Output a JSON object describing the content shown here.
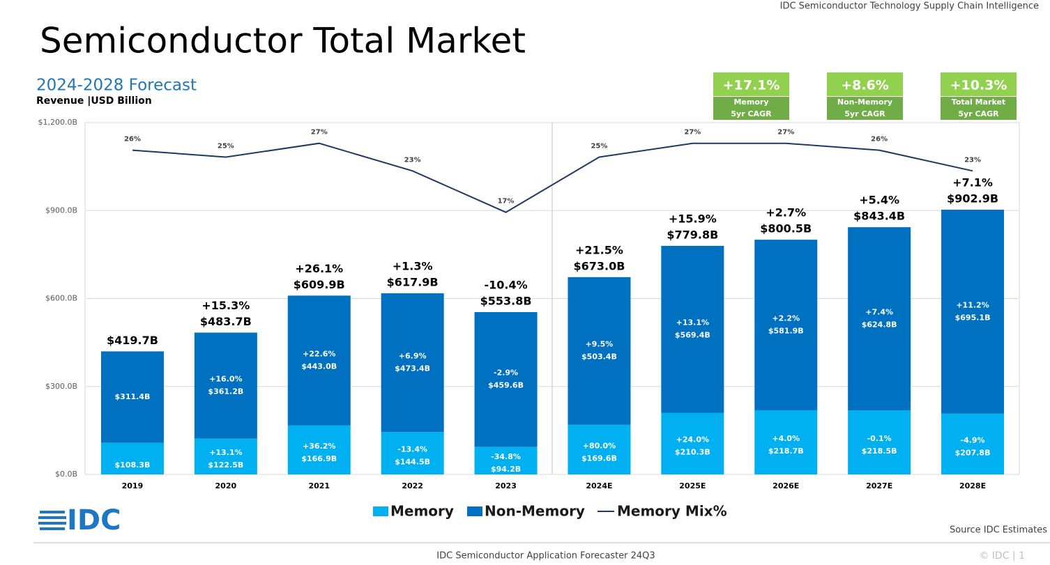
{
  "header": "IDC Semiconductor Technology Supply Chain Intelligence",
  "title": "Semiconductor Total Market",
  "logo": "IDC",
  "source": "Source IDC Estimates",
  "footer": "IDC Semiconductor Application Forecaster 24Q3",
  "copyright": "© IDC |  1",
  "kpis": [
    {
      "value": "+17.1%",
      "name": "Memory",
      "sub": "5yr CAGR"
    },
    {
      "value": "+8.6%",
      "name": "Non-Memory",
      "sub": "5yr CAGR"
    },
    {
      "value": "+10.3%",
      "name": "Total Market",
      "sub": "5yr CAGR"
    }
  ],
  "chart_data": {
    "type": "bar",
    "subtitle": "2024-2028 Forecast",
    "ylabel": "Revenue |USD Billion",
    "categories": [
      "2019",
      "2020",
      "2021",
      "2022",
      "2023",
      "2024E",
      "2025E",
      "2026E",
      "2027E",
      "2028E"
    ],
    "ylim": [
      0,
      1200
    ],
    "yticks": [
      {
        "value": 0,
        "label": "$0.0B"
      },
      {
        "value": 300,
        "label": "$300.0B"
      },
      {
        "value": 600,
        "label": "$600.0B"
      },
      {
        "value": 900,
        "label": "$900.0B"
      },
      {
        "value": 1200,
        "label": "$1,200.0B"
      }
    ],
    "y2lim": [
      -21,
      30
    ],
    "grid": true,
    "series": [
      {
        "name": "Memory",
        "color": "#00b0f0",
        "values": [
          108.3,
          122.5,
          166.9,
          144.5,
          94.2,
          169.6,
          210.3,
          218.7,
          218.5,
          207.8
        ],
        "value_labels": [
          "$108.3B",
          "$122.5B",
          "$166.9B",
          "$144.5B",
          "$94.2B",
          "$169.6B",
          "$210.3B",
          "$218.7B",
          "$218.5B",
          "$207.8B"
        ],
        "growth_labels": [
          null,
          "+13.1%",
          "+36.2%",
          "-13.4%",
          "-34.8%",
          "+80.0%",
          "+24.0%",
          "+4.0%",
          "-0.1%",
          "-4.9%"
        ]
      },
      {
        "name": "Non-Memory",
        "color": "#0070c0",
        "values": [
          311.4,
          361.2,
          443.0,
          473.4,
          459.6,
          503.4,
          569.4,
          581.9,
          624.8,
          695.1
        ],
        "value_labels": [
          "$311.4B",
          "$361.2B",
          "$443.0B",
          "$473.4B",
          "$459.6B",
          "$503.4B",
          "$569.4B",
          "$581.9B",
          "$624.8B",
          "$695.1B"
        ],
        "growth_labels": [
          null,
          "+16.0%",
          "+22.6%",
          "+6.9%",
          "-2.9%",
          "+9.5%",
          "+13.1%",
          "+2.2%",
          "+7.4%",
          "+11.2%"
        ]
      },
      {
        "name": "Memory Mix%",
        "color": "#1f3864",
        "type": "line",
        "axis": "y2",
        "values": [
          26,
          25,
          27,
          23,
          17,
          25,
          27,
          27,
          26,
          23
        ],
        "value_labels": [
          "26%",
          "25%",
          "27%",
          "23%",
          "17%",
          "25%",
          "27%",
          "27%",
          "26%",
          "23%"
        ]
      }
    ],
    "totals": [
      419.7,
      483.7,
      609.9,
      617.9,
      553.8,
      673.0,
      779.8,
      800.5,
      843.4,
      902.9
    ],
    "total_labels": [
      "$419.7B",
      "$483.7B",
      "$609.9B",
      "$617.9B",
      "$553.8B",
      "$673.0B",
      "$779.8B",
      "$800.5B",
      "$843.4B",
      "$902.9B"
    ],
    "total_growth_labels": [
      null,
      "+15.3%",
      "+26.1%",
      "+1.3%",
      "-10.4%",
      "+21.5%",
      "+15.9%",
      "+2.7%",
      "+5.4%",
      "+7.1%"
    ]
  }
}
